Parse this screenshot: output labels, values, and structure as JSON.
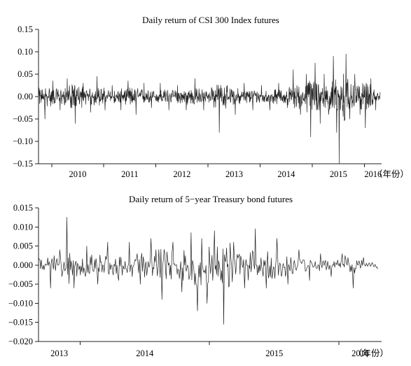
{
  "chart_data": [
    {
      "type": "line",
      "title": "Daily return of CSI 300 Index futures",
      "xlabel": "",
      "ylabel": "",
      "ylim": [
        -0.15,
        0.15
      ],
      "yticks": [
        "0.15",
        "0.10",
        "0.05",
        "0.00",
        "−0.05",
        "−0.10",
        "−0.15"
      ],
      "ytick_values": [
        0.15,
        0.1,
        0.05,
        0.0,
        -0.05,
        -0.1,
        -0.15
      ],
      "xticks": [
        "2010",
        "2011",
        "2012",
        "2013",
        "2014",
        "2015",
        "2016"
      ],
      "x_unit": "（年份）",
      "xlim": [
        "2009-10-01",
        "2016-04-30"
      ],
      "grid": false,
      "series": [
        {
          "values_note": "approximate daily returns, sampled",
          "x": [
            "2009-10-01",
            "2009-11-15",
            "2010-01-10",
            "2010-03-01",
            "2010-04-20",
            "2010-06-15",
            "2010-08-10",
            "2010-10-01",
            "2010-11-15",
            "2011-01-10",
            "2011-03-01",
            "2011-05-01",
            "2011-06-20",
            "2011-08-15",
            "2011-10-10",
            "2011-12-01",
            "2012-02-01",
            "2012-04-01",
            "2012-06-01",
            "2012-08-01",
            "2012-10-01",
            "2012-12-01",
            "2013-01-25",
            "2013-03-20",
            "2013-05-15",
            "2013-07-10",
            "2013-09-10",
            "2013-11-10",
            "2014-01-10",
            "2014-03-10",
            "2014-05-10",
            "2014-07-10",
            "2014-08-20",
            "2014-10-10",
            "2014-11-20",
            "2014-12-20",
            "2015-01-20",
            "2015-02-25",
            "2015-03-25",
            "2015-04-25",
            "2015-05-28",
            "2015-06-20",
            "2015-07-08",
            "2015-08-25",
            "2015-09-20",
            "2015-10-25",
            "2015-12-01",
            "2016-01-07",
            "2016-02-15",
            "2016-03-20",
            "2016-04-20"
          ],
          "values": [
            0.02,
            -0.05,
            0.035,
            -0.03,
            0.04,
            -0.06,
            0.03,
            -0.035,
            0.045,
            -0.03,
            0.025,
            -0.03,
            0.035,
            -0.04,
            0.03,
            -0.025,
            0.03,
            -0.03,
            0.025,
            -0.03,
            0.04,
            -0.03,
            0.02,
            -0.08,
            0.025,
            -0.04,
            0.03,
            -0.03,
            0.025,
            -0.03,
            0.03,
            -0.025,
            0.06,
            -0.04,
            0.05,
            -0.09,
            0.075,
            -0.06,
            0.05,
            -0.04,
            0.09,
            -0.08,
            -0.15,
            0.095,
            -0.05,
            0.05,
            -0.04,
            -0.07,
            0.04,
            -0.03,
            0.01
          ]
        }
      ]
    },
    {
      "type": "line",
      "title": "Daily return  of 5−year Treasury bond futures",
      "xlabel": "",
      "ylabel": "",
      "ylim": [
        -0.02,
        0.015
      ],
      "yticks": [
        "0.015",
        "0.010",
        "0.005",
        "0.000",
        "−0.005",
        "−0.010",
        "−0.015",
        "−0.020"
      ],
      "ytick_values": [
        0.015,
        0.01,
        0.005,
        0.0,
        -0.005,
        -0.01,
        -0.015,
        -0.02
      ],
      "xticks": [
        "2013",
        "2014",
        "2015",
        "2016"
      ],
      "x_unit": "（年份）",
      "xlim": [
        "2013-09-06",
        "2016-04-30"
      ],
      "grid": false,
      "series": [
        {
          "values_note": "approximate daily returns, sampled",
          "x": [
            "2013-09-06",
            "2013-10-10",
            "2013-11-05",
            "2013-11-25",
            "2013-12-15",
            "2014-01-20",
            "2014-02-20",
            "2014-03-20",
            "2014-04-20",
            "2014-05-20",
            "2014-06-20",
            "2014-07-20",
            "2014-08-20",
            "2014-09-20",
            "2014-10-15",
            "2014-11-10",
            "2014-11-28",
            "2014-12-10",
            "2014-12-25",
            "2015-01-15",
            "2015-02-10",
            "2015-03-10",
            "2015-04-10",
            "2015-05-10",
            "2015-06-10",
            "2015-07-10",
            "2015-08-10",
            "2015-09-10",
            "2015-10-10",
            "2015-11-10",
            "2015-12-10",
            "2016-01-10",
            "2016-02-10",
            "2016-03-10",
            "2016-04-20"
          ],
          "values": [
            0.002,
            -0.006,
            0.004,
            0.0125,
            -0.006,
            0.005,
            -0.005,
            0.006,
            -0.004,
            0.006,
            -0.005,
            0.007,
            -0.009,
            0.006,
            -0.007,
            0.0085,
            -0.012,
            0.007,
            -0.01,
            0.009,
            -0.0155,
            0.006,
            -0.006,
            0.0095,
            -0.006,
            0.007,
            -0.005,
            0.004,
            -0.004,
            0.003,
            -0.003,
            0.003,
            -0.006,
            0.002,
            -0.001
          ]
        }
      ]
    }
  ]
}
